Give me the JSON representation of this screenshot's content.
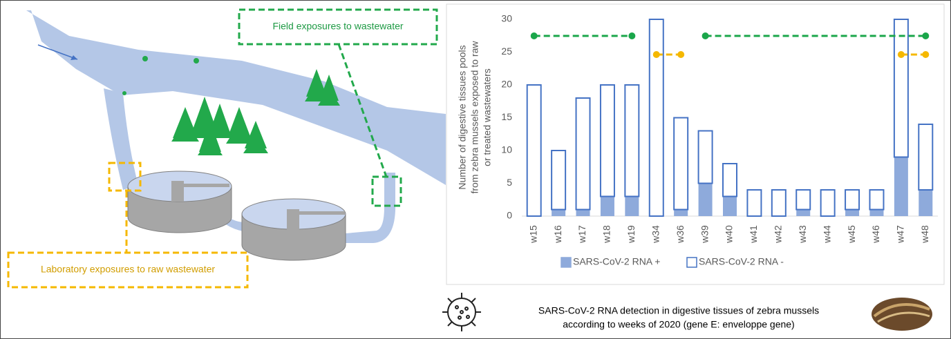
{
  "chart_data": {
    "type": "bar",
    "stacked": true,
    "y_label": [
      "Number of digestive tissues pools",
      "from zebra mussels exposed to raw",
      "or treated wastewaters"
    ],
    "categories": [
      "w15",
      "w16",
      "w17",
      "w18",
      "w19",
      "w34",
      "w36",
      "w39",
      "w40",
      "w41",
      "w42",
      "w43",
      "w44",
      "w45",
      "w46",
      "w47",
      "w48"
    ],
    "series": [
      {
        "name": "SARS-CoV-2 RNA +",
        "color": "#8eaadb",
        "values": [
          0,
          1,
          1,
          3,
          3,
          0,
          1,
          5,
          3,
          0,
          0,
          1,
          0,
          1,
          1,
          9,
          4
        ]
      },
      {
        "name": "SARS-CoV-2 RNA -",
        "color": "#4472c4",
        "values": [
          20,
          9,
          17,
          17,
          17,
          30,
          14,
          8,
          5,
          4,
          4,
          3,
          4,
          3,
          3,
          21,
          10
        ]
      }
    ],
    "ylim": [
      0,
      30
    ],
    "yticks": [
      0,
      5,
      10,
      15,
      20,
      25,
      30
    ],
    "grid": false,
    "legend": "bottom"
  },
  "diagram": {
    "field_label": "Field exposures to wastewater",
    "lab_label": "Laboratory exposures to raw wastewater",
    "caption": [
      "SARS-CoV-2 RNA detection in digestive tissues of zebra mussels",
      "according to weeks of 2020 (gene E: enveloppe gene)"
    ]
  }
}
